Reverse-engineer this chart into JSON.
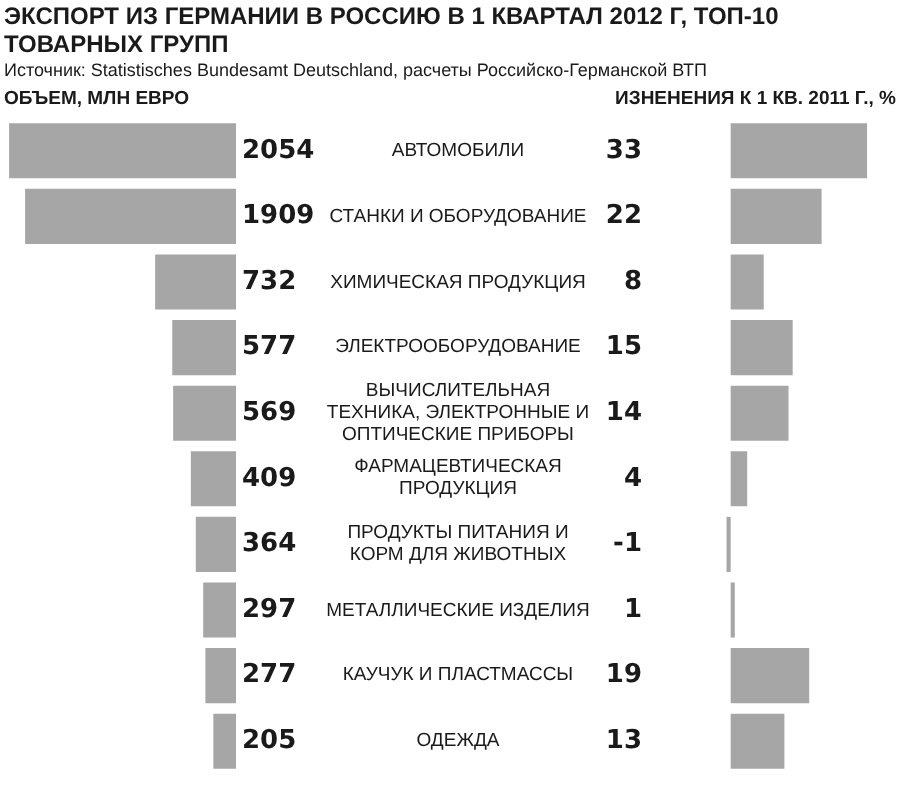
{
  "chart_data": [
    {
      "type": "bar",
      "orientation": "horizontal",
      "title": "ЭКСПОРТ ИЗ ГЕРМАНИИ В РОССИЮ В 1 КВАРТАЛ 2012 Г, ТОП-10 ТОВАРНЫХ ГРУПП",
      "annotations": [
        "Источник: Statistisches Bundesamt Deutschland, расчеты Российско-Германской ВТП"
      ],
      "xlabel": "ОБЪЕМ, МЛН ЕВРО",
      "categories": [
        "АВТОМОБИЛИ",
        "СТАНКИ И ОБОРУДОВАНИЕ",
        "ХИМИЧЕСКАЯ ПРОДУКЦИЯ",
        "ЭЛЕКТРООБОРУДОВАНИЕ",
        "ВЫЧИСЛИТЕЛЬНАЯ ТЕХНИКА, ЭЛЕКТРОННЫЕ И ОПТИЧЕСКИЕ ПРИБОРЫ",
        "ФАРМАЦЕВТИЧЕСКАЯ ПРОДУКЦИЯ",
        "ПРОДУКТЫ ПИТАНИЯ И КОРМ ДЛЯ ЖИВОТНЫХ",
        "МЕТАЛЛИЧЕСКИЕ ИЗДЕЛИЯ",
        "КАУЧУК И ПЛАСТМАССЫ",
        "ОДЕЖДА"
      ],
      "values": [
        2054,
        1909,
        732,
        577,
        569,
        409,
        364,
        297,
        277,
        205
      ],
      "color": "#a6a6a6",
      "xlim": [
        2100,
        0
      ],
      "data_labels": true,
      "tick_labels": "y"
    },
    {
      "type": "bar",
      "orientation": "horizontal",
      "xlabel": "ИЗНЕНЕНИЯ К 1 КВ. 2011 Г., %",
      "categories": [
        null,
        null,
        null,
        null,
        null,
        null,
        null,
        null,
        null,
        null
      ],
      "values": [
        33,
        22,
        8,
        15,
        14,
        4,
        -1,
        1,
        19,
        13
      ],
      "color": "#a6a6a6",
      "data_labels": true,
      "tick_labels": false
    }
  ]
}
